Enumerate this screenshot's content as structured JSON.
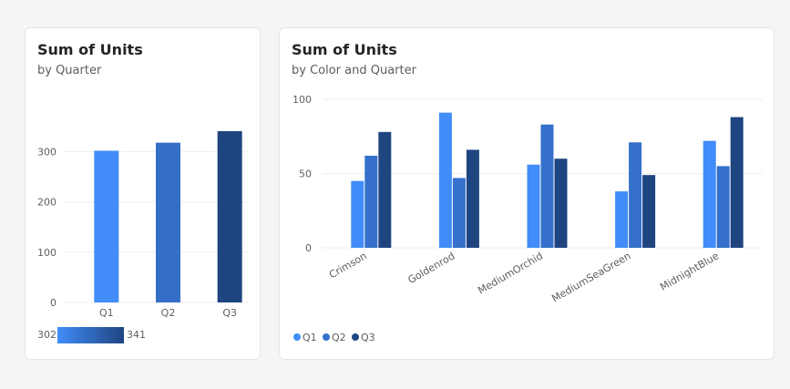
{
  "colors": {
    "Q1": "#418cf9",
    "Q2": "#3470cc",
    "Q3": "#1f4580"
  },
  "left_card": {
    "title": "Sum of Units",
    "subtitle": "by Quarter"
  },
  "right_card": {
    "title": "Sum of Units",
    "subtitle": "by Color and Quarter"
  },
  "chart_data": [
    {
      "type": "bar",
      "title": "Sum of Units",
      "subtitle": "by Quarter",
      "categories": [
        "Q1",
        "Q2",
        "Q3"
      ],
      "values": [
        302,
        318,
        341
      ],
      "ylim": [
        0,
        350
      ],
      "yticks": [
        0,
        100,
        200,
        300
      ],
      "grid": true,
      "color_scale": {
        "min_label": "302",
        "max_label": "341"
      }
    },
    {
      "type": "bar",
      "title": "Sum of Units",
      "subtitle": "by Color and Quarter",
      "categories": [
        "Crimson",
        "Goldenrod",
        "MediumOrchid",
        "MediumSeaGreen",
        "MidnightBlue"
      ],
      "series": [
        {
          "name": "Q1",
          "values": [
            45,
            91,
            56,
            38,
            72
          ]
        },
        {
          "name": "Q2",
          "values": [
            62,
            47,
            83,
            71,
            55
          ]
        },
        {
          "name": "Q3",
          "values": [
            78,
            66,
            60,
            49,
            88
          ]
        }
      ],
      "ylim": [
        0,
        100
      ],
      "yticks": [
        0,
        50,
        100
      ],
      "grid": true,
      "legend": "bottom-left"
    }
  ]
}
